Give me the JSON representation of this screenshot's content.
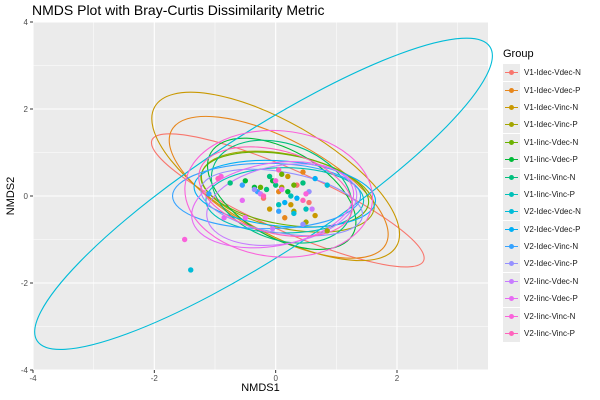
{
  "chart_data": {
    "type": "scatter",
    "title": "NMDS Plot with Bray-Curtis Dissimilarity Metric",
    "xlabel": "NMDS1",
    "ylabel": "NMDS2",
    "xlim": [
      -4,
      3.5
    ],
    "ylim": [
      -4,
      4
    ],
    "xticks": [
      -4,
      -2,
      0,
      2
    ],
    "yticks": [
      -4,
      -2,
      0,
      2,
      4
    ],
    "legend_title": "Group",
    "legend_position": "right",
    "grid": true,
    "background": "#ebebeb",
    "series": [
      {
        "name": "V1-Idec-Vdec-N",
        "color": "#F8766D",
        "points": [
          [
            0.55,
            -0.15
          ],
          [
            0.35,
            0.25
          ],
          [
            -0.2,
            -0.05
          ]
        ],
        "ellipse": {
          "cx": 0.2,
          "cy": -0.1,
          "rx": 2.45,
          "ry": 0.7,
          "angle": -24
        }
      },
      {
        "name": "V1-Idec-Vdec-P",
        "color": "#E7861B",
        "points": [
          [
            0.15,
            -0.5
          ],
          [
            0.45,
            0.55
          ],
          [
            0.05,
            0.1
          ]
        ],
        "ellipse": {
          "cx": 0.05,
          "cy": 0.2,
          "rx": 2.0,
          "ry": 1.1,
          "angle": -28
        }
      },
      {
        "name": "V1-Idec-Vinc-N",
        "color": "#C99800",
        "points": [
          [
            0.25,
            -0.2
          ],
          [
            0.65,
            -0.45
          ],
          [
            0.2,
            0.45
          ],
          [
            -0.1,
            -0.3
          ]
        ],
        "ellipse": {
          "cx": 0.0,
          "cy": 0.45,
          "rx": 2.3,
          "ry": 1.25,
          "angle": -30
        }
      },
      {
        "name": "V1-Idec-Vinc-P",
        "color": "#A3A500",
        "points": [
          [
            0.5,
            -0.6
          ],
          [
            0.85,
            -0.8
          ],
          [
            0.3,
            -0.35
          ],
          [
            0.1,
            0.2
          ]
        ],
        "ellipse": {
          "cx": 0.2,
          "cy": 0.1,
          "rx": 1.45,
          "ry": 0.85,
          "angle": -12
        }
      },
      {
        "name": "V1-Iinc-Vdec-N",
        "color": "#6BB100",
        "points": [
          [
            0.3,
            0.25
          ],
          [
            0.1,
            0.5
          ],
          [
            -0.25,
            0.2
          ]
        ],
        "ellipse": {
          "cx": 0.15,
          "cy": 0.15,
          "rx": 1.4,
          "ry": 0.8,
          "angle": -10
        }
      },
      {
        "name": "V1-Iinc-Vdec-P",
        "color": "#00BA38",
        "points": [
          [
            -0.5,
            0.35
          ],
          [
            -0.35,
            0.2
          ],
          [
            0.2,
            0.1
          ],
          [
            -0.05,
            0.35
          ]
        ],
        "ellipse": {
          "cx": 0.1,
          "cy": 0.05,
          "rx": 1.35,
          "ry": 1.0,
          "angle": -30
        }
      },
      {
        "name": "V1-Iinc-Vinc-N",
        "color": "#00BF7D",
        "points": [
          [
            -0.75,
            0.3
          ],
          [
            -0.1,
            0.45
          ],
          [
            0.0,
            0.25
          ],
          [
            0.45,
            0.3
          ],
          [
            -0.15,
            0.15
          ]
        ],
        "ellipse": {
          "cx": 0.1,
          "cy": 0.1,
          "rx": 1.2,
          "ry": 1.1,
          "angle": -20
        }
      },
      {
        "name": "V1-Iinc-Vinc-P",
        "color": "#00C0B8",
        "points": [
          [
            0.25,
            0.0
          ],
          [
            0.5,
            -0.3
          ],
          [
            0.05,
            -0.2
          ]
        ],
        "ellipse": {
          "cx": 0.15,
          "cy": -0.1,
          "rx": 1.3,
          "ry": 0.75,
          "angle": 0
        }
      },
      {
        "name": "V2-Idec-Vdec-N",
        "color": "#00BCD8",
        "points": [
          [
            -1.4,
            -1.7
          ],
          [
            0.85,
            0.25
          ],
          [
            0.3,
            -0.4
          ]
        ],
        "ellipse": {
          "cx": -0.2,
          "cy": 0.05,
          "rx": 4.45,
          "ry": 1.4,
          "angle": 33
        }
      },
      {
        "name": "V2-Idec-Vdec-P",
        "color": "#00B0F6",
        "points": [
          [
            0.65,
            0.4
          ],
          [
            0.15,
            -0.15
          ],
          [
            0.35,
            -0.05
          ]
        ],
        "ellipse": {
          "cx": 0.15,
          "cy": 0.05,
          "rx": 1.5,
          "ry": 0.75,
          "angle": -5
        }
      },
      {
        "name": "V2-Idec-Vinc-N",
        "color": "#35A2FF",
        "points": [
          [
            -1.1,
            0.05
          ],
          [
            -0.3,
            0.1
          ],
          [
            0.05,
            -0.35
          ],
          [
            -0.55,
            0.25
          ]
        ],
        "ellipse": {
          "cx": -0.15,
          "cy": 0.0,
          "rx": 1.55,
          "ry": 0.75,
          "angle": 0
        }
      },
      {
        "name": "V2-Idec-Vinc-P",
        "color": "#9590FF",
        "points": [
          [
            0.45,
            -0.65
          ],
          [
            -0.35,
            0.15
          ],
          [
            0.55,
            0.1
          ]
        ],
        "ellipse": {
          "cx": 0.1,
          "cy": -0.15,
          "rx": 1.35,
          "ry": 0.7,
          "angle": -10
        }
      },
      {
        "name": "V2-Iinc-Vdec-N",
        "color": "#C77CFF",
        "points": [
          [
            -0.05,
            -0.75
          ],
          [
            -0.25,
            0.05
          ],
          [
            0.6,
            -0.3
          ]
        ],
        "ellipse": {
          "cx": 0.1,
          "cy": -0.2,
          "rx": 1.25,
          "ry": 0.9,
          "angle": 10
        }
      },
      {
        "name": "V2-Iinc-Vdec-P",
        "color": "#E76BF3",
        "points": [
          [
            -0.85,
            -0.5
          ],
          [
            -0.55,
            -0.1
          ],
          [
            -0.5,
            -0.5
          ],
          [
            0.1,
            0.15
          ]
        ],
        "ellipse": {
          "cx": -0.05,
          "cy": -0.2,
          "rx": 1.35,
          "ry": 0.95,
          "angle": 10
        }
      },
      {
        "name": "V2-Iinc-Vinc-N",
        "color": "#FA62DB",
        "points": [
          [
            -1.5,
            -1.0
          ],
          [
            -0.9,
            0.45
          ],
          [
            0.0,
            0.35
          ],
          [
            0.5,
            0.05
          ]
        ],
        "ellipse": {
          "cx": 0.05,
          "cy": 0.05,
          "rx": 1.55,
          "ry": 1.45,
          "angle": -5
        }
      },
      {
        "name": "V2-Iinc-Vinc-P",
        "color": "#FF62BC",
        "points": [
          [
            -0.95,
            0.4
          ],
          [
            0.05,
            0.6
          ],
          [
            0.45,
            -0.1
          ],
          [
            -0.2,
            0.0
          ]
        ],
        "ellipse": {
          "cx": 0.0,
          "cy": 0.1,
          "rx": 1.3,
          "ry": 0.95,
          "angle": -15
        }
      }
    ]
  }
}
